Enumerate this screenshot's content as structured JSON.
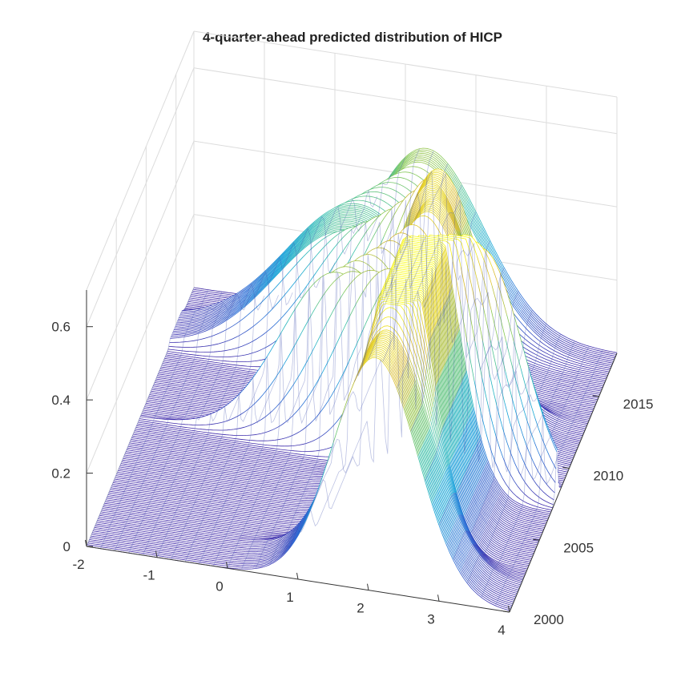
{
  "chart_data": {
    "type": "surface",
    "title": "4-quarter-ahead predicted distribution of HICP",
    "xlabel": "",
    "ylabel": "",
    "zlabel": "",
    "x_ticks": [
      -2,
      -1,
      0,
      1,
      2,
      3,
      4
    ],
    "y_ticks": [
      2000,
      2005,
      2010,
      2015
    ],
    "z_ticks": [
      0,
      0.2,
      0.4,
      0.6
    ],
    "xlim": [
      -2,
      4
    ],
    "ylim": [
      2000,
      2018
    ],
    "zlim": [
      0,
      0.7
    ],
    "grid": true,
    "colormap": "parula",
    "colormap_stops": [
      "#3e26a8",
      "#2d6fd6",
      "#14a3d8",
      "#35bfb0",
      "#8bc953",
      "#d9ba35",
      "#f9fb15"
    ],
    "contour_floor": true,
    "distribution_modes": [
      {
        "year_from": 2000,
        "year_to": 2002,
        "mean": 2.1,
        "sd": 0.6
      },
      {
        "year_from": 2003,
        "year_to": 2007,
        "mean": 2.2,
        "sd": 0.45
      },
      {
        "year_from": 2008,
        "year_to": 2008,
        "mean": 3.0,
        "sd": 0.6
      },
      {
        "year_from": 2009,
        "year_to": 2009,
        "mean": 0.8,
        "sd": 0.8
      },
      {
        "year_from": 2010,
        "year_to": 2011,
        "mean": 2.0,
        "sd": 0.6
      },
      {
        "year_from": 2012,
        "year_to": 2013,
        "mean": 1.9,
        "sd": 0.6
      },
      {
        "year_from": 2014,
        "year_to": 2016,
        "mean": 0.5,
        "sd": 1.0
      },
      {
        "year_from": 2017,
        "year_to": 2018,
        "mean": 1.3,
        "sd": 0.8
      }
    ],
    "peak_density": 0.69
  }
}
